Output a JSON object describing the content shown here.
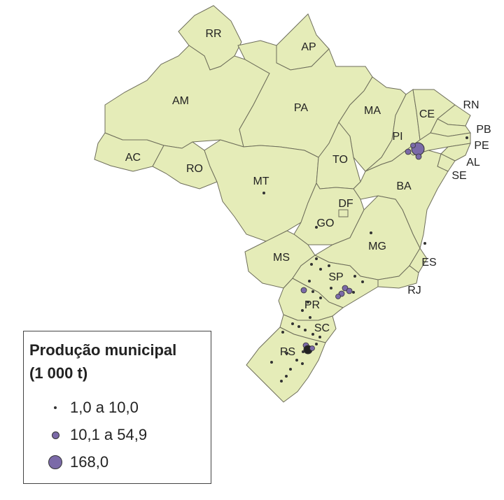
{
  "map": {
    "state_labels": {
      "RR": "RR",
      "AP": "AP",
      "AM": "AM",
      "PA": "PA",
      "MA": "MA",
      "CE": "CE",
      "RN": "RN",
      "PB": "PB",
      "PE": "PE",
      "AL": "AL",
      "SE": "SE",
      "PI": "PI",
      "AC": "AC",
      "RO": "RO",
      "MT": "MT",
      "TO": "TO",
      "BA": "BA",
      "DF": "DF",
      "GO": "GO",
      "MG": "MG",
      "MS": "MS",
      "ES": "ES",
      "SP": "SP",
      "RJ": "RJ",
      "PR": "PR",
      "SC": "SC",
      "RS": "RS"
    },
    "fill_color": "#e5ecb8",
    "point_color": "#7b6aa8"
  },
  "legend": {
    "title_line1": "Produção municipal",
    "title_line2": "(1 000 t)",
    "items": [
      {
        "label": "1,0 a 10,0"
      },
      {
        "label": "10,1 a 54,9"
      },
      {
        "label": "168,0"
      }
    ]
  }
}
